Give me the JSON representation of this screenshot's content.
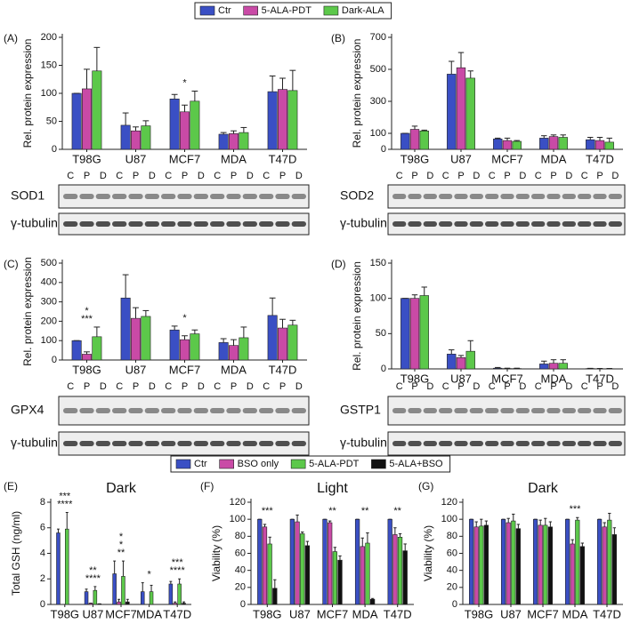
{
  "chart_data": [
    {
      "type": "bar",
      "panel": "(A)",
      "ylabel": "Rel. protein expression",
      "categories": [
        "T98G",
        "U87",
        "MCF7",
        "MDA",
        "T47D"
      ],
      "series": [
        {
          "name": "Ctr",
          "color": "#3a4fc4",
          "values": [
            100,
            43,
            90,
            27,
            103
          ],
          "errors": [
            0,
            22,
            8,
            3,
            28
          ]
        },
        {
          "name": "5-ALA-PDT",
          "color": "#c94aa6",
          "values": [
            108,
            33,
            67,
            28,
            107
          ],
          "errors": [
            35,
            7,
            12,
            5,
            20
          ]
        },
        {
          "name": "Dark-ALA",
          "color": "#5cc84a",
          "values": [
            140,
            42,
            86,
            30,
            105
          ],
          "errors": [
            42,
            9,
            18,
            9,
            36
          ]
        }
      ],
      "ylim": [
        0,
        200
      ],
      "yticks": [
        0,
        50,
        100,
        150,
        200
      ],
      "legend": true,
      "annotations": [
        {
          "text": "*",
          "category": 2
        }
      ],
      "lanes": [
        "C",
        "P",
        "D"
      ],
      "blots": [
        "SOD1",
        "γ-tubulin"
      ]
    },
    {
      "type": "bar",
      "panel": "(B)",
      "ylabel": "Rel. protein expression",
      "categories": [
        "T98G",
        "U87",
        "MCF7",
        "MDA",
        "T47D"
      ],
      "series": [
        {
          "name": "Ctr",
          "color": "#3a4fc4",
          "values": [
            100,
            470,
            65,
            70,
            60
          ],
          "errors": [
            0,
            80,
            5,
            15,
            15
          ]
        },
        {
          "name": "5-ALA-PDT",
          "color": "#c94aa6",
          "values": [
            125,
            510,
            55,
            80,
            55
          ],
          "errors": [
            20,
            95,
            15,
            10,
            20
          ]
        },
        {
          "name": "Dark-ALA",
          "color": "#5cc84a",
          "values": [
            115,
            445,
            50,
            75,
            45
          ],
          "errors": [
            5,
            45,
            5,
            15,
            25
          ]
        }
      ],
      "ylim": [
        0,
        700
      ],
      "yticks": [
        0,
        100,
        300,
        500,
        700
      ],
      "lanes": [
        "C",
        "P",
        "D"
      ],
      "blots": [
        "SOD2",
        "γ-tubulin"
      ]
    },
    {
      "type": "bar",
      "panel": "(C)",
      "ylabel": "Rel. protein expression",
      "categories": [
        "T98G",
        "U87",
        "MCF7",
        "MDA",
        "T47D"
      ],
      "series": [
        {
          "name": "Ctr",
          "color": "#3a4fc4",
          "values": [
            100,
            320,
            155,
            90,
            230
          ],
          "errors": [
            0,
            120,
            20,
            20,
            90
          ]
        },
        {
          "name": "5-ALA-PDT",
          "color": "#c94aa6",
          "values": [
            30,
            215,
            105,
            75,
            165
          ],
          "errors": [
            12,
            55,
            20,
            30,
            45
          ]
        },
        {
          "name": "Dark-ALA",
          "color": "#5cc84a",
          "values": [
            120,
            225,
            135,
            115,
            180
          ],
          "errors": [
            50,
            30,
            20,
            55,
            25
          ]
        }
      ],
      "ylim": [
        0,
        500
      ],
      "yticks": [
        0,
        100,
        200,
        300,
        400,
        500
      ],
      "annotations": [
        {
          "text": "***",
          "category": 0
        },
        {
          "text": "*",
          "category": 0
        },
        {
          "text": "*",
          "category": 2
        }
      ],
      "lanes": [
        "C",
        "P",
        "D"
      ],
      "blots": [
        "GPX4",
        "γ-tubulin"
      ]
    },
    {
      "type": "bar",
      "panel": "(D)",
      "ylabel": "Rel. protein expression",
      "categories": [
        "T98G",
        "U87",
        "MCF7",
        "MDA",
        "T47D"
      ],
      "series": [
        {
          "name": "Ctr",
          "color": "#3a4fc4",
          "values": [
            100,
            21,
            1,
            7,
            0.5
          ],
          "errors": [
            0,
            6,
            1,
            4,
            0.3
          ]
        },
        {
          "name": "5-ALA-PDT",
          "color": "#c94aa6",
          "values": [
            100,
            16,
            0.5,
            8,
            0.3
          ],
          "errors": [
            5,
            3,
            0.5,
            5,
            0.3
          ]
        },
        {
          "name": "Dark-ALA",
          "color": "#5cc84a",
          "values": [
            104,
            25,
            0.5,
            8,
            0.3
          ],
          "errors": [
            12,
            15,
            0.5,
            5,
            0.3
          ]
        }
      ],
      "ylim": [
        0,
        150
      ],
      "yticks": [
        0,
        50,
        100,
        150
      ],
      "lanes": [
        "C",
        "P",
        "D"
      ],
      "blots": [
        "GSTP1",
        "γ-tubulin"
      ]
    },
    {
      "type": "bar",
      "panel": "(E)",
      "title": "Dark",
      "ylabel": "Total GSH (ng/ml)",
      "categories": [
        "T98G",
        "U87",
        "MCF7",
        "MDA",
        "T47D"
      ],
      "series": [
        {
          "name": "Ctr",
          "color": "#3a4fc4",
          "values": [
            5.6,
            1.0,
            2.4,
            1.0,
            1.6
          ],
          "errors": [
            0.3,
            0.2,
            1.0,
            0.7,
            0.2
          ]
        },
        {
          "name": "BSO only",
          "color": "#c94aa6",
          "values": [
            0,
            0.1,
            0.2,
            0,
            0.1
          ],
          "errors": [
            0,
            0,
            0.2,
            0,
            0.1
          ]
        },
        {
          "name": "5-ALA-PDT",
          "color": "#5cc84a",
          "values": [
            5.9,
            1.1,
            2.2,
            1.0,
            1.6
          ],
          "errors": [
            1.3,
            0.3,
            1.2,
            0.5,
            0.4
          ]
        },
        {
          "name": "5-ALA+BSO",
          "color": "#111111",
          "values": [
            0,
            0.05,
            0.2,
            0,
            0.1
          ],
          "errors": [
            0,
            0,
            0.2,
            0,
            0.1
          ]
        }
      ],
      "ylim": [
        0,
        8
      ],
      "yticks": [
        0,
        2,
        4,
        6,
        8
      ],
      "legend": true,
      "annotations": [
        {
          "text": "****",
          "category": 0
        },
        {
          "text": "***",
          "category": 0
        },
        {
          "text": "****",
          "category": 1
        },
        {
          "text": "**",
          "category": 1
        },
        {
          "text": "**",
          "category": 2
        },
        {
          "text": "*",
          "category": 2
        },
        {
          "text": "*",
          "category": 2
        },
        {
          "text": "*",
          "category": 3
        },
        {
          "text": "****",
          "category": 4
        },
        {
          "text": "***",
          "category": 4
        }
      ]
    },
    {
      "type": "bar",
      "panel": "(F)",
      "title": "Light",
      "ylabel": "Viability (%)",
      "categories": [
        "T98G",
        "U87",
        "MCF7",
        "MDA",
        "T47D"
      ],
      "series": [
        {
          "name": "Ctr",
          "color": "#3a4fc4",
          "values": [
            100,
            100,
            100,
            100,
            100
          ],
          "errors": [
            0,
            0,
            0,
            0,
            0
          ]
        },
        {
          "name": "BSO only",
          "color": "#c94aa6",
          "values": [
            91,
            97,
            96,
            68,
            82
          ],
          "errors": [
            3,
            8,
            2,
            10,
            8
          ]
        },
        {
          "name": "5-ALA-PDT",
          "color": "#5cc84a",
          "values": [
            71,
            83,
            62,
            72,
            79
          ],
          "errors": [
            8,
            2,
            5,
            12,
            4
          ]
        },
        {
          "name": "5-ALA+BSO",
          "color": "#111111",
          "values": [
            19,
            69,
            52,
            6,
            63
          ],
          "errors": [
            10,
            5,
            5,
            1,
            8
          ]
        }
      ],
      "ylim": [
        0,
        120
      ],
      "yticks": [
        0,
        20,
        40,
        60,
        80,
        100,
        120
      ],
      "annotations": [
        {
          "text": "***",
          "category": 0
        },
        {
          "text": "**",
          "category": 2
        },
        {
          "text": "**",
          "category": 3
        },
        {
          "text": "**",
          "category": 4
        }
      ]
    },
    {
      "type": "bar",
      "panel": "(G)",
      "title": "Dark",
      "ylabel": "Viability (%)",
      "categories": [
        "T98G",
        "U87",
        "MCF7",
        "MDA",
        "T47D"
      ],
      "series": [
        {
          "name": "Ctr",
          "color": "#3a4fc4",
          "values": [
            100,
            100,
            100,
            100,
            100
          ],
          "errors": [
            0,
            0,
            0,
            0,
            0
          ]
        },
        {
          "name": "BSO only",
          "color": "#c94aa6",
          "values": [
            91,
            96,
            93,
            71,
            91
          ],
          "errors": [
            6,
            5,
            6,
            5,
            5
          ]
        },
        {
          "name": "5-ALA-PDT",
          "color": "#5cc84a",
          "values": [
            92,
            98,
            93,
            99,
            99
          ],
          "errors": [
            8,
            8,
            8,
            3,
            8
          ]
        },
        {
          "name": "5-ALA+BSO",
          "color": "#111111",
          "values": [
            93,
            89,
            91,
            68,
            82
          ],
          "errors": [
            5,
            5,
            6,
            4,
            8
          ]
        }
      ],
      "ylim": [
        0,
        120
      ],
      "yticks": [
        0,
        20,
        40,
        60,
        80,
        100,
        120
      ],
      "annotations": [
        {
          "text": "***",
          "category": 3
        }
      ]
    }
  ]
}
